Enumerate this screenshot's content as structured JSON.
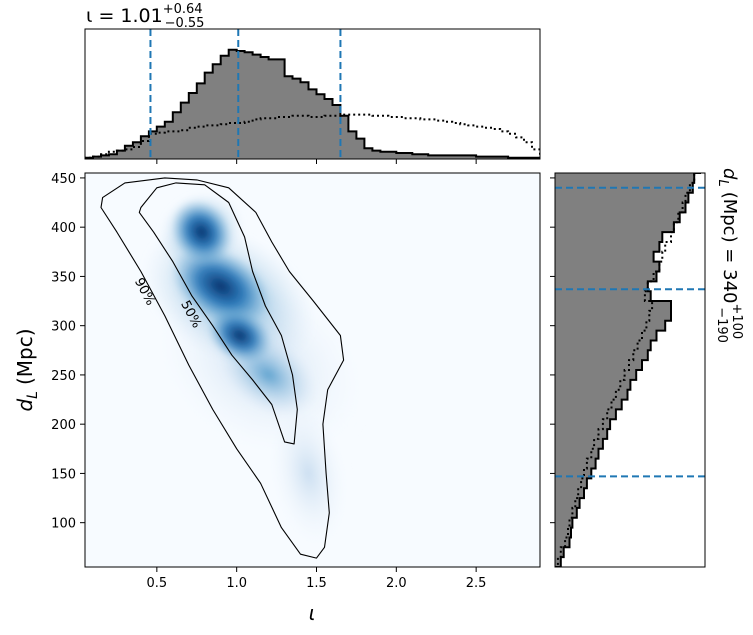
{
  "chart_data": [
    {
      "panel": "top-marginal",
      "type": "histogram",
      "title": "ι = 1.01",
      "title_sup": "+0.64",
      "title_sub": "−0.55",
      "xlim": [
        0.05,
        2.9
      ],
      "median": 1.01,
      "interval": [
        0.46,
        1.65
      ],
      "bins_start": 0.05,
      "bin_width": 0.05,
      "posterior": [
        0.01,
        0.02,
        0.03,
        0.04,
        0.07,
        0.11,
        0.14,
        0.19,
        0.23,
        0.27,
        0.31,
        0.39,
        0.47,
        0.55,
        0.63,
        0.72,
        0.79,
        0.86,
        0.91,
        0.9,
        0.89,
        0.87,
        0.85,
        0.83,
        0.83,
        0.69,
        0.67,
        0.64,
        0.58,
        0.54,
        0.5,
        0.45,
        0.36,
        0.23,
        0.17,
        0.09,
        0.07,
        0.06,
        0.06,
        0.05,
        0.05,
        0.04,
        0.04,
        0.03,
        0.03,
        0.03,
        0.03,
        0.03,
        0.03,
        0.02,
        0.02,
        0.02,
        0.02,
        0.01,
        0.01,
        0.01,
        0.01
      ],
      "prior": [
        0.01,
        0.02,
        0.04,
        0.06,
        0.07,
        0.08,
        0.1,
        0.15,
        0.21,
        0.22,
        0.23,
        0.23,
        0.24,
        0.26,
        0.27,
        0.28,
        0.28,
        0.29,
        0.3,
        0.3,
        0.31,
        0.33,
        0.34,
        0.34,
        0.35,
        0.35,
        0.36,
        0.36,
        0.35,
        0.35,
        0.36,
        0.36,
        0.37,
        0.37,
        0.37,
        0.37,
        0.36,
        0.36,
        0.35,
        0.35,
        0.34,
        0.34,
        0.33,
        0.33,
        0.32,
        0.31,
        0.3,
        0.29,
        0.28,
        0.27,
        0.26,
        0.25,
        0.23,
        0.21,
        0.18,
        0.14,
        0.08
      ]
    },
    {
      "panel": "joint",
      "type": "heatmap",
      "xlabel": "ι",
      "ylabel": "d",
      "ylabel_sub": "L",
      "ylabel_unit": "(Mpc)",
      "xlim": [
        0.05,
        2.9
      ],
      "ylim": [
        55,
        455
      ],
      "xticks": [
        "0.5",
        "1.0",
        "1.5",
        "2.0",
        "2.5"
      ],
      "xtick_values": [
        0.5,
        1.0,
        1.5,
        2.0,
        2.5
      ],
      "yticks": [
        "100",
        "150",
        "200",
        "250",
        "300",
        "350",
        "400",
        "450"
      ],
      "ytick_values": [
        100,
        150,
        200,
        250,
        300,
        350,
        400,
        450
      ],
      "contours": [
        {
          "label": "90%",
          "label_at": [
            0.43,
            335
          ],
          "points": [
            [
              0.16,
              430
            ],
            [
              0.3,
              445
            ],
            [
              0.55,
              450
            ],
            [
              0.75,
              448
            ],
            [
              0.95,
              440
            ],
            [
              1.12,
              415
            ],
            [
              1.22,
              385
            ],
            [
              1.33,
              355
            ],
            [
              1.48,
              325
            ],
            [
              1.65,
              290
            ],
            [
              1.67,
              265
            ],
            [
              1.57,
              235
            ],
            [
              1.54,
              200
            ],
            [
              1.56,
              150
            ],
            [
              1.58,
              110
            ],
            [
              1.55,
              75
            ],
            [
              1.5,
              64
            ],
            [
              1.4,
              68
            ],
            [
              1.28,
              95
            ],
            [
              1.15,
              140
            ],
            [
              1.0,
              175
            ],
            [
              0.85,
              215
            ],
            [
              0.7,
              260
            ],
            [
              0.55,
              310
            ],
            [
              0.4,
              355
            ],
            [
              0.25,
              395
            ],
            [
              0.15,
              420
            ]
          ]
        },
        {
          "label": "50%",
          "label_at": [
            0.72,
            312
          ],
          "points": [
            [
              0.4,
              420
            ],
            [
              0.5,
              440
            ],
            [
              0.62,
              445
            ],
            [
              0.8,
              443
            ],
            [
              0.95,
              425
            ],
            [
              1.05,
              390
            ],
            [
              1.1,
              355
            ],
            [
              1.18,
              320
            ],
            [
              1.28,
              290
            ],
            [
              1.35,
              250
            ],
            [
              1.38,
              215
            ],
            [
              1.36,
              180
            ],
            [
              1.3,
              182
            ],
            [
              1.22,
              220
            ],
            [
              1.1,
              245
            ],
            [
              0.97,
              270
            ],
            [
              0.85,
              300
            ],
            [
              0.72,
              330
            ],
            [
              0.6,
              365
            ],
            [
              0.48,
              395
            ],
            [
              0.39,
              415
            ]
          ]
        }
      ]
    },
    {
      "panel": "right-marginal",
      "type": "histogram",
      "title": "d",
      "title_sub_L": "L",
      "title_rest": "(Mpc) = 340",
      "title_sup": "+100",
      "title_sub": "−190",
      "ylim": [
        55,
        455
      ],
      "median": 337,
      "interval": [
        147,
        440
      ],
      "bins_start": 55,
      "bin_width": 10,
      "posterior": [
        0.04,
        0.06,
        0.1,
        0.11,
        0.12,
        0.15,
        0.17,
        0.2,
        0.22,
        0.25,
        0.28,
        0.3,
        0.33,
        0.36,
        0.38,
        0.42,
        0.46,
        0.5,
        0.52,
        0.56,
        0.6,
        0.64,
        0.66,
        0.7,
        0.76,
        0.8,
        0.8,
        0.66,
        0.64,
        0.7,
        0.72,
        0.68,
        0.72,
        0.74,
        0.82,
        0.86,
        0.9,
        0.92,
        0.95,
        0.96,
        1.0
      ],
      "prior": [
        0.02,
        0.04,
        0.07,
        0.09,
        0.1,
        0.12,
        0.14,
        0.16,
        0.18,
        0.2,
        0.22,
        0.25,
        0.27,
        0.3,
        0.33,
        0.36,
        0.39,
        0.42,
        0.45,
        0.48,
        0.51,
        0.54,
        0.57,
        0.6,
        0.63,
        0.65,
        0.67,
        0.62,
        0.64,
        0.68,
        0.72,
        0.74,
        0.76,
        0.8,
        0.82,
        0.85,
        0.88,
        0.9,
        0.93,
        0.96,
        0.98
      ]
    }
  ],
  "colors": {
    "hist_fill": "#808080",
    "dashed_line": "#1f77b4",
    "contour": "#000000",
    "heat_dark": "#08306b",
    "heat_light": "#f7fbff"
  }
}
